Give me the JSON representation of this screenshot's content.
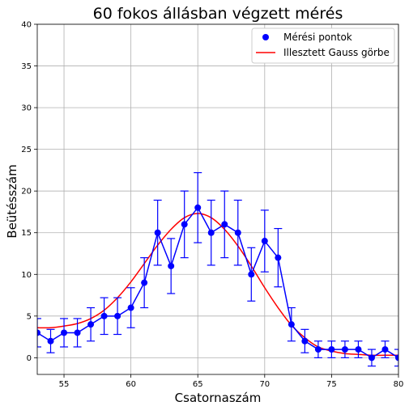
{
  "chart_data": {
    "type": "scatter",
    "title": "60 fokos állásban végzett mérés",
    "xlabel": "Csatornaszám",
    "ylabel": "Beütésszám",
    "xlim": [
      53,
      80
    ],
    "ylim": [
      -2,
      40
    ],
    "xticks": [
      55,
      60,
      65,
      70,
      75,
      80
    ],
    "yticks": [
      0,
      5,
      10,
      15,
      20,
      25,
      30,
      35,
      40
    ],
    "grid": true,
    "legend_position": "top-right",
    "colors": {
      "points": "#0000ff",
      "fit": "#ff0000",
      "grid": "#b0b0b0"
    },
    "series": [
      {
        "name": "Mérési pontok",
        "kind": "points-with-errorbars",
        "x": [
          53,
          54,
          55,
          56,
          57,
          58,
          59,
          60,
          61,
          62,
          63,
          64,
          65,
          66,
          67,
          68,
          69,
          70,
          71,
          72,
          73,
          74,
          75,
          76,
          77,
          78,
          79,
          80
        ],
        "y": [
          3,
          2,
          3,
          3,
          4,
          5,
          5,
          6,
          9,
          15,
          11,
          16,
          18,
          15,
          16,
          15,
          10,
          14,
          12,
          4,
          2,
          1,
          1,
          1,
          1,
          0,
          1,
          0
        ],
        "yerr": [
          1.7,
          1.4,
          1.7,
          1.7,
          2.0,
          2.2,
          2.2,
          2.4,
          3.0,
          3.9,
          3.3,
          4.0,
          4.2,
          3.9,
          4.0,
          3.9,
          3.2,
          3.7,
          3.5,
          2.0,
          1.4,
          1.0,
          1.0,
          1.0,
          1.0,
          1.0,
          1.0,
          1.0
        ]
      },
      {
        "name": "Illesztett Gauss görbe",
        "kind": "line",
        "x": [
          53,
          54,
          55,
          56,
          57,
          58,
          59,
          60,
          61,
          62,
          63,
          64,
          65,
          66,
          67,
          68,
          69,
          70,
          71,
          72,
          73,
          74,
          75,
          76,
          77,
          78,
          79,
          80
        ],
        "y": [
          3.6,
          3.6,
          3.8,
          4.1,
          4.7,
          5.7,
          7.2,
          9.1,
          11.3,
          13.5,
          15.4,
          16.8,
          17.3,
          16.8,
          15.4,
          13.4,
          11.0,
          8.4,
          6.0,
          3.9,
          2.4,
          1.3,
          0.8,
          0.5,
          0.4,
          0.3,
          0.3,
          0.3
        ]
      }
    ]
  }
}
